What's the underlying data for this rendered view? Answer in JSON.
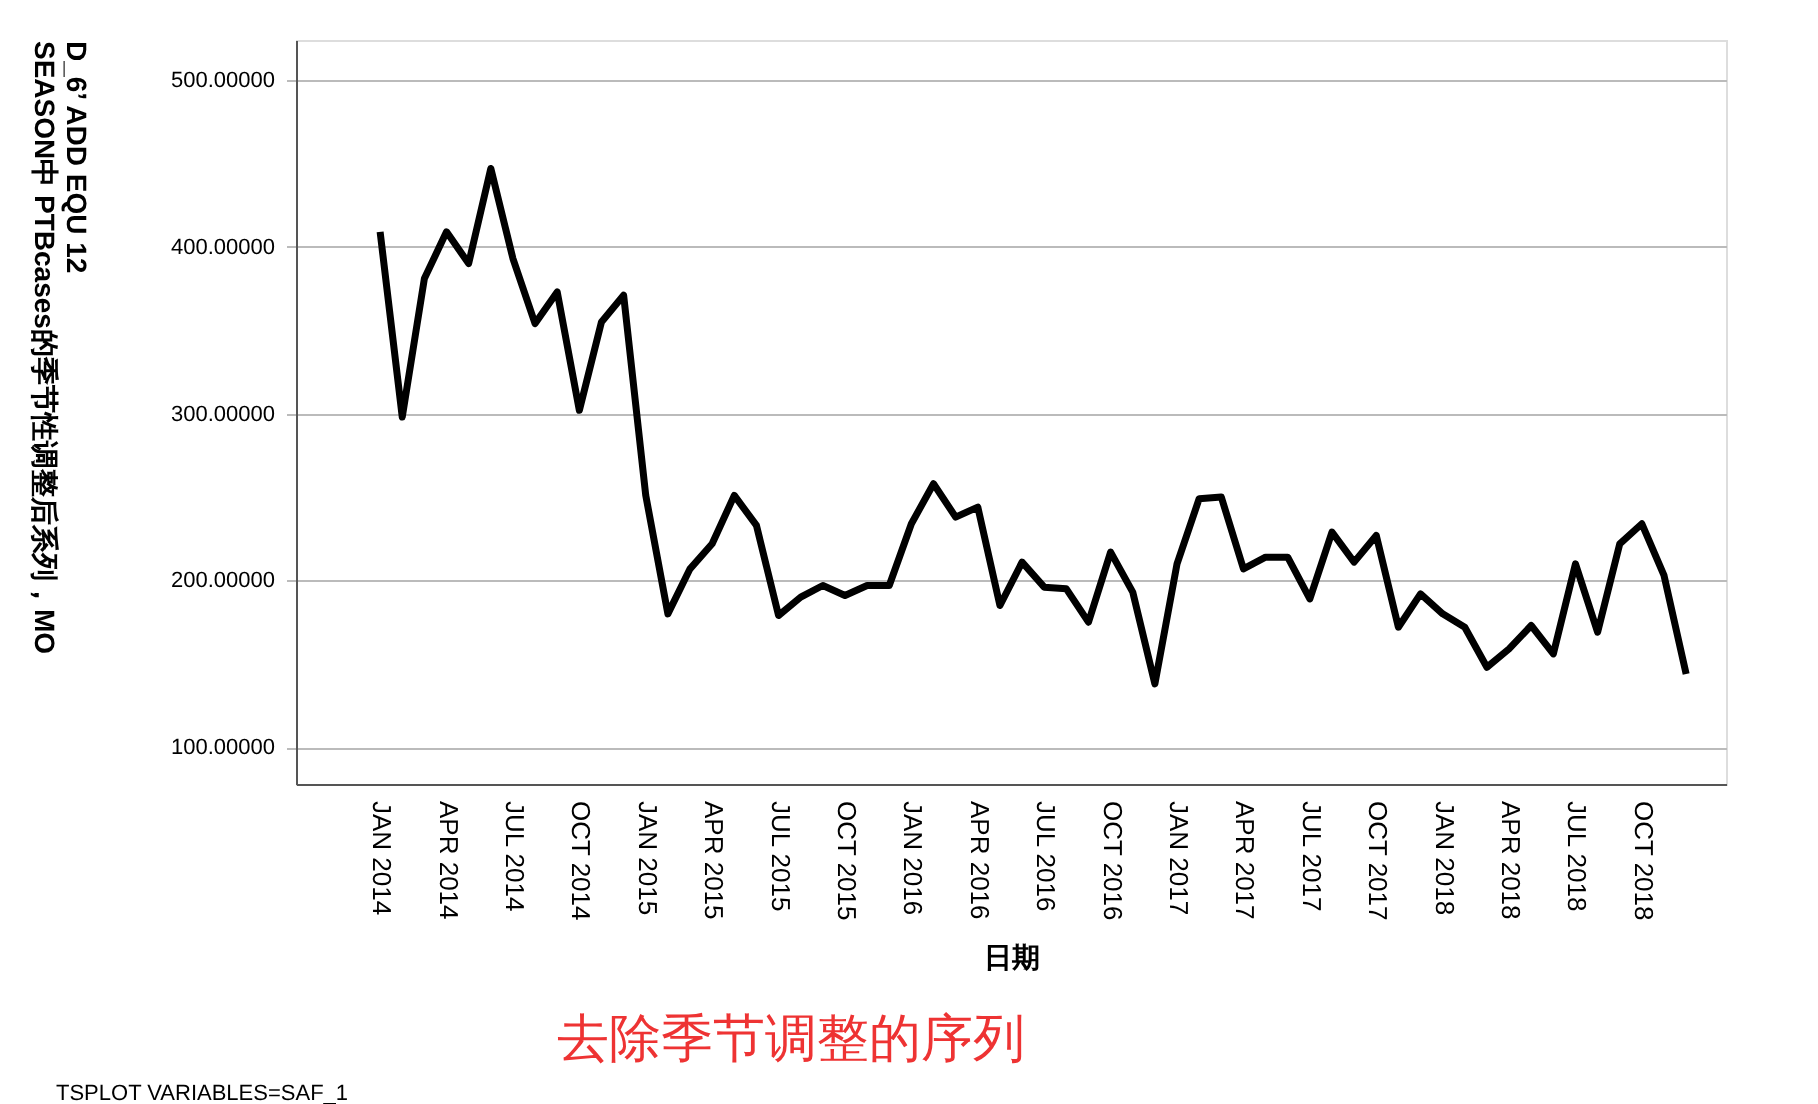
{
  "chart_data": {
    "type": "line",
    "title": "去除季节调整的序列",
    "xlabel": "日期",
    "ylabel": "D_6’ ADD EQU 12\nSEASON中 PTBcases的季节性调整后系列，MO",
    "annotations": [
      "TSPLOT VARIABLES=SAF_1"
    ],
    "categories": [
      "JAN 2014",
      null,
      null,
      "APR 2014",
      null,
      null,
      "JUL 2014",
      null,
      null,
      "OCT 2014",
      null,
      null,
      "JAN 2015",
      null,
      null,
      "APR 2015",
      null,
      null,
      "JUL 2015",
      null,
      null,
      "OCT 2015",
      null,
      null,
      "JAN 2016",
      null,
      null,
      "APR 2016",
      null,
      null,
      "JUL 2016",
      null,
      null,
      "OCT 2016",
      null,
      null,
      "JAN 2017",
      null,
      null,
      "APR 2017",
      null,
      null,
      "JUL 2017",
      null,
      null,
      "OCT 2017",
      null,
      null,
      "JAN 2018",
      null,
      null,
      "APR 2018",
      null,
      null,
      "JUL 2018",
      null,
      null,
      "OCT 2018",
      null,
      null
    ],
    "series": [
      {
        "color": "#000000",
        "values": [
          409,
          298,
          381,
          409,
          390,
          447,
          393,
          354,
          373,
          302,
          355,
          371,
          251,
          180,
          207,
          222,
          251,
          233,
          179,
          190,
          197,
          191,
          197,
          197,
          234,
          258,
          238,
          244,
          185,
          211,
          196,
          195,
          175,
          217,
          193,
          138,
          210,
          249,
          250,
          207,
          214,
          214,
          189,
          229,
          211,
          227,
          172,
          192,
          180,
          172,
          148,
          159,
          173,
          156,
          210,
          169,
          222,
          234,
          203,
          144
        ]
      }
    ],
    "ylim": [
      78,
      524
    ],
    "yticks": [
      {
        "value": 100,
        "label": "100.00000"
      },
      {
        "value": 200,
        "label": "200.00000"
      },
      {
        "value": 300,
        "label": "300.00000"
      },
      {
        "value": 400,
        "label": "400.00000"
      },
      {
        "value": 500,
        "label": "500.00000"
      }
    ],
    "grid": "y",
    "marker": "none",
    "line_style": "solid"
  }
}
